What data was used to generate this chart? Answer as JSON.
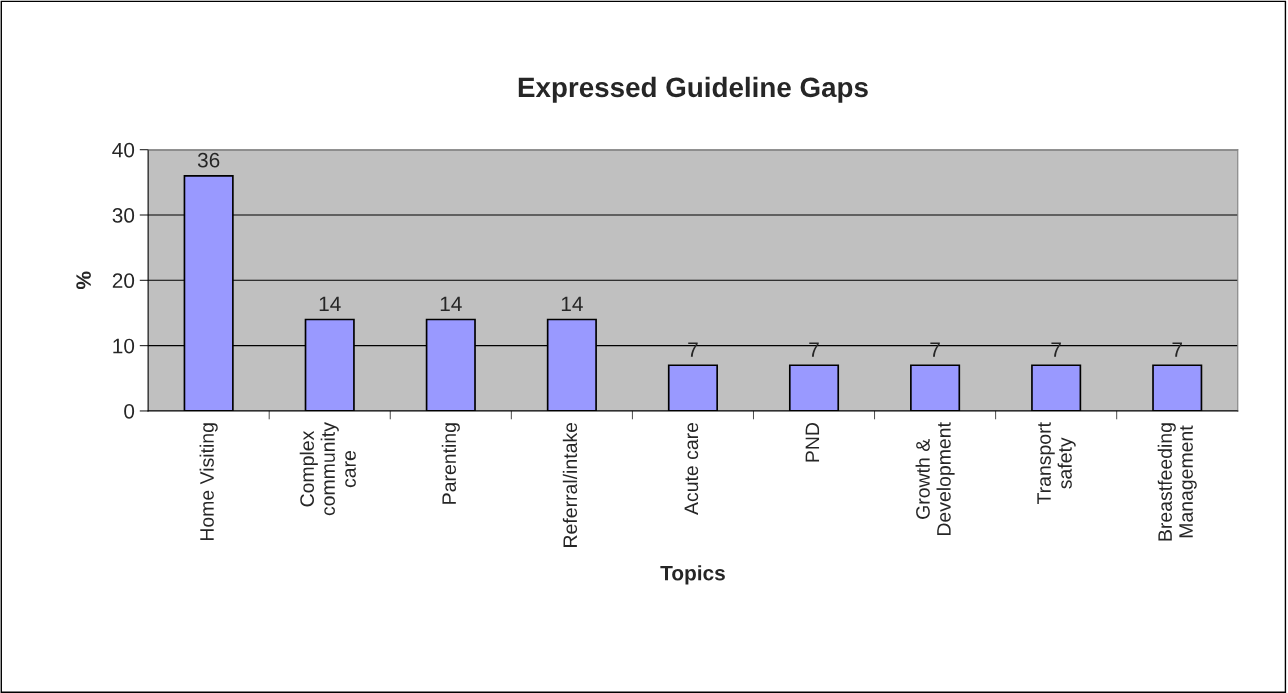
{
  "chart_data": {
    "type": "bar",
    "title": "Expressed Guideline Gaps",
    "xlabel": "Topics",
    "ylabel": "%",
    "categories": [
      "Home Visiting",
      "Complex\ncommunity\ncare",
      "Parenting",
      "Referral/intake",
      "Acute care",
      "PND",
      "Growth &\nDevelopment",
      "Transport\nsafety",
      "Breastfeeding\nManagement"
    ],
    "values": [
      36,
      14,
      14,
      14,
      7,
      7,
      7,
      7,
      7
    ],
    "color": "#9999ff",
    "ylim": [
      0,
      40
    ],
    "yticks": [
      0,
      10,
      20,
      30,
      40
    ],
    "grid": "y",
    "data_labels": true
  }
}
